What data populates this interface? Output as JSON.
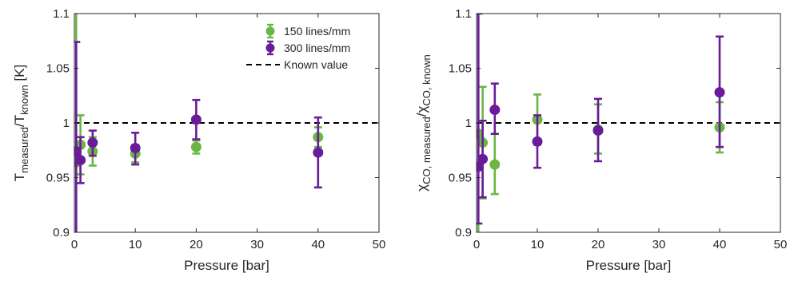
{
  "chart_data": [
    {
      "type": "scatter",
      "subtype": "errorbar",
      "xlabel": "Pressure [bar]",
      "ylabel": {
        "main": "T",
        "sub1": "measured",
        "sep": "/T",
        "sub2": "known",
        "suffix": " [K]"
      },
      "xlim": [
        0,
        50
      ],
      "ylim": [
        0.9,
        1.1
      ],
      "xticks": [
        "0",
        "10",
        "20",
        "30",
        "40",
        "50"
      ],
      "yticks": [
        "0.9",
        "0.95",
        "1",
        "1.05",
        "1.1"
      ],
      "xtick_values": [
        0,
        10,
        20,
        30,
        40,
        50
      ],
      "ytick_values": [
        0.9,
        0.95,
        1.0,
        1.05,
        1.1
      ],
      "reference_line": {
        "y": 1.0,
        "style": "dashed",
        "label": "Known value",
        "color": "#000000"
      },
      "legend": {
        "position": "top-right",
        "entries": [
          "150 lines/mm",
          "300 lines/mm",
          "Known value"
        ]
      },
      "grid": false,
      "series": [
        {
          "name": "150 lines/mm",
          "color": "#6ab744",
          "points": [
            {
              "x": 0.3,
              "y": 0.964,
              "lo": 0.89,
              "hi": 1.13
            },
            {
              "x": 1,
              "y": 0.98,
              "lo": 0.953,
              "hi": 1.007
            },
            {
              "x": 3,
              "y": 0.974,
              "lo": 0.961,
              "hi": 0.987
            },
            {
              "x": 10,
              "y": 0.972,
              "lo": 0.964,
              "hi": 0.98
            },
            {
              "x": 20,
              "y": 0.978,
              "lo": 0.972,
              "hi": 0.984
            },
            {
              "x": 40,
              "y": 0.987,
              "lo": 0.978,
              "hi": 0.996
            }
          ]
        },
        {
          "name": "300 lines/mm",
          "color": "#6a1b9a",
          "points": [
            {
              "x": 0.3,
              "y": 0.974,
              "lo": 0.87,
              "hi": 1.074
            },
            {
              "x": 1,
              "y": 0.966,
              "lo": 0.945,
              "hi": 0.987
            },
            {
              "x": 3,
              "y": 0.982,
              "lo": 0.97,
              "hi": 0.993
            },
            {
              "x": 10,
              "y": 0.977,
              "lo": 0.962,
              "hi": 0.991
            },
            {
              "x": 20,
              "y": 1.003,
              "lo": 0.985,
              "hi": 1.021
            },
            {
              "x": 40,
              "y": 0.973,
              "lo": 0.941,
              "hi": 1.005
            }
          ]
        }
      ]
    },
    {
      "type": "scatter",
      "subtype": "errorbar",
      "xlabel": "Pressure [bar]",
      "ylabel": {
        "main": "χ",
        "sub1": "CO, measured",
        "sep": "/χ",
        "sub2": "CO, known",
        "suffix": ""
      },
      "xlim": [
        0,
        50
      ],
      "ylim": [
        0.9,
        1.1
      ],
      "xticks": [
        "0",
        "10",
        "20",
        "30",
        "40",
        "50"
      ],
      "yticks": [
        "0.9",
        "0.95",
        "1",
        "1.05",
        "1.1"
      ],
      "xtick_values": [
        0,
        10,
        20,
        30,
        40,
        50
      ],
      "ytick_values": [
        0.9,
        0.95,
        1.0,
        1.05,
        1.1
      ],
      "reference_line": {
        "y": 1.0,
        "style": "dashed",
        "color": "#000000"
      },
      "grid": false,
      "series": [
        {
          "name": "150 lines/mm",
          "color": "#6ab744",
          "points": [
            {
              "x": 0.3,
              "y": 0.99,
              "lo": 0.88,
              "hi": 1.1
            },
            {
              "x": 1,
              "y": 0.982,
              "lo": 0.931,
              "hi": 1.033
            },
            {
              "x": 3,
              "y": 0.962,
              "lo": 0.935,
              "hi": 0.99
            },
            {
              "x": 10,
              "y": 1.003,
              "lo": 0.98,
              "hi": 1.026
            },
            {
              "x": 20,
              "y": 0.994,
              "lo": 0.972,
              "hi": 1.017
            },
            {
              "x": 40,
              "y": 0.996,
              "lo": 0.973,
              "hi": 1.019
            }
          ]
        },
        {
          "name": "300 lines/mm",
          "color": "#6a1b9a",
          "points": [
            {
              "x": 0.3,
              "y": 0.96,
              "lo": 0.908,
              "hi": 1.1
            },
            {
              "x": 1,
              "y": 0.967,
              "lo": 0.932,
              "hi": 1.002
            },
            {
              "x": 3,
              "y": 1.012,
              "lo": 0.99,
              "hi": 1.036
            },
            {
              "x": 10,
              "y": 0.983,
              "lo": 0.959,
              "hi": 1.007
            },
            {
              "x": 20,
              "y": 0.993,
              "lo": 0.965,
              "hi": 1.022
            },
            {
              "x": 40,
              "y": 1.028,
              "lo": 0.978,
              "hi": 1.079
            }
          ]
        }
      ]
    }
  ]
}
